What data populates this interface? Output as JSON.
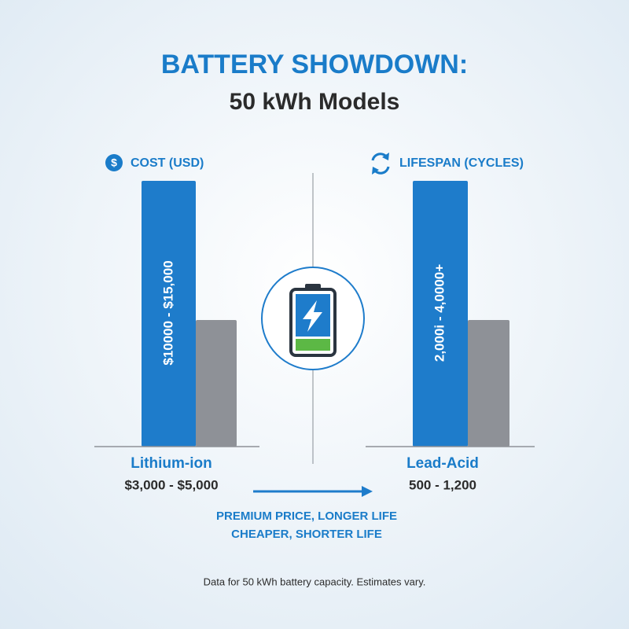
{
  "header": {
    "title": "BATTERY SHOWDOWN:",
    "subtitle": "50 kWh Models"
  },
  "panels": [
    {
      "heading": "COST (USD)",
      "bar_label": "$10000 - $15,000",
      "name": "Lithium-ion",
      "range": "$3,000 - $5,000"
    },
    {
      "heading": "LIFESPAN (CYCLES)",
      "bar_label": "2,000i - 4,0000+",
      "name": "Lead-Acid",
      "range": "500 - 1,200"
    }
  ],
  "summary": [
    "PREMIUM PRICE, LONGER LIFE",
    "CHEAPER, SHORTER LIFE"
  ],
  "footnote": "Data for 50 kWh battery capacity. Estimates vary."
}
